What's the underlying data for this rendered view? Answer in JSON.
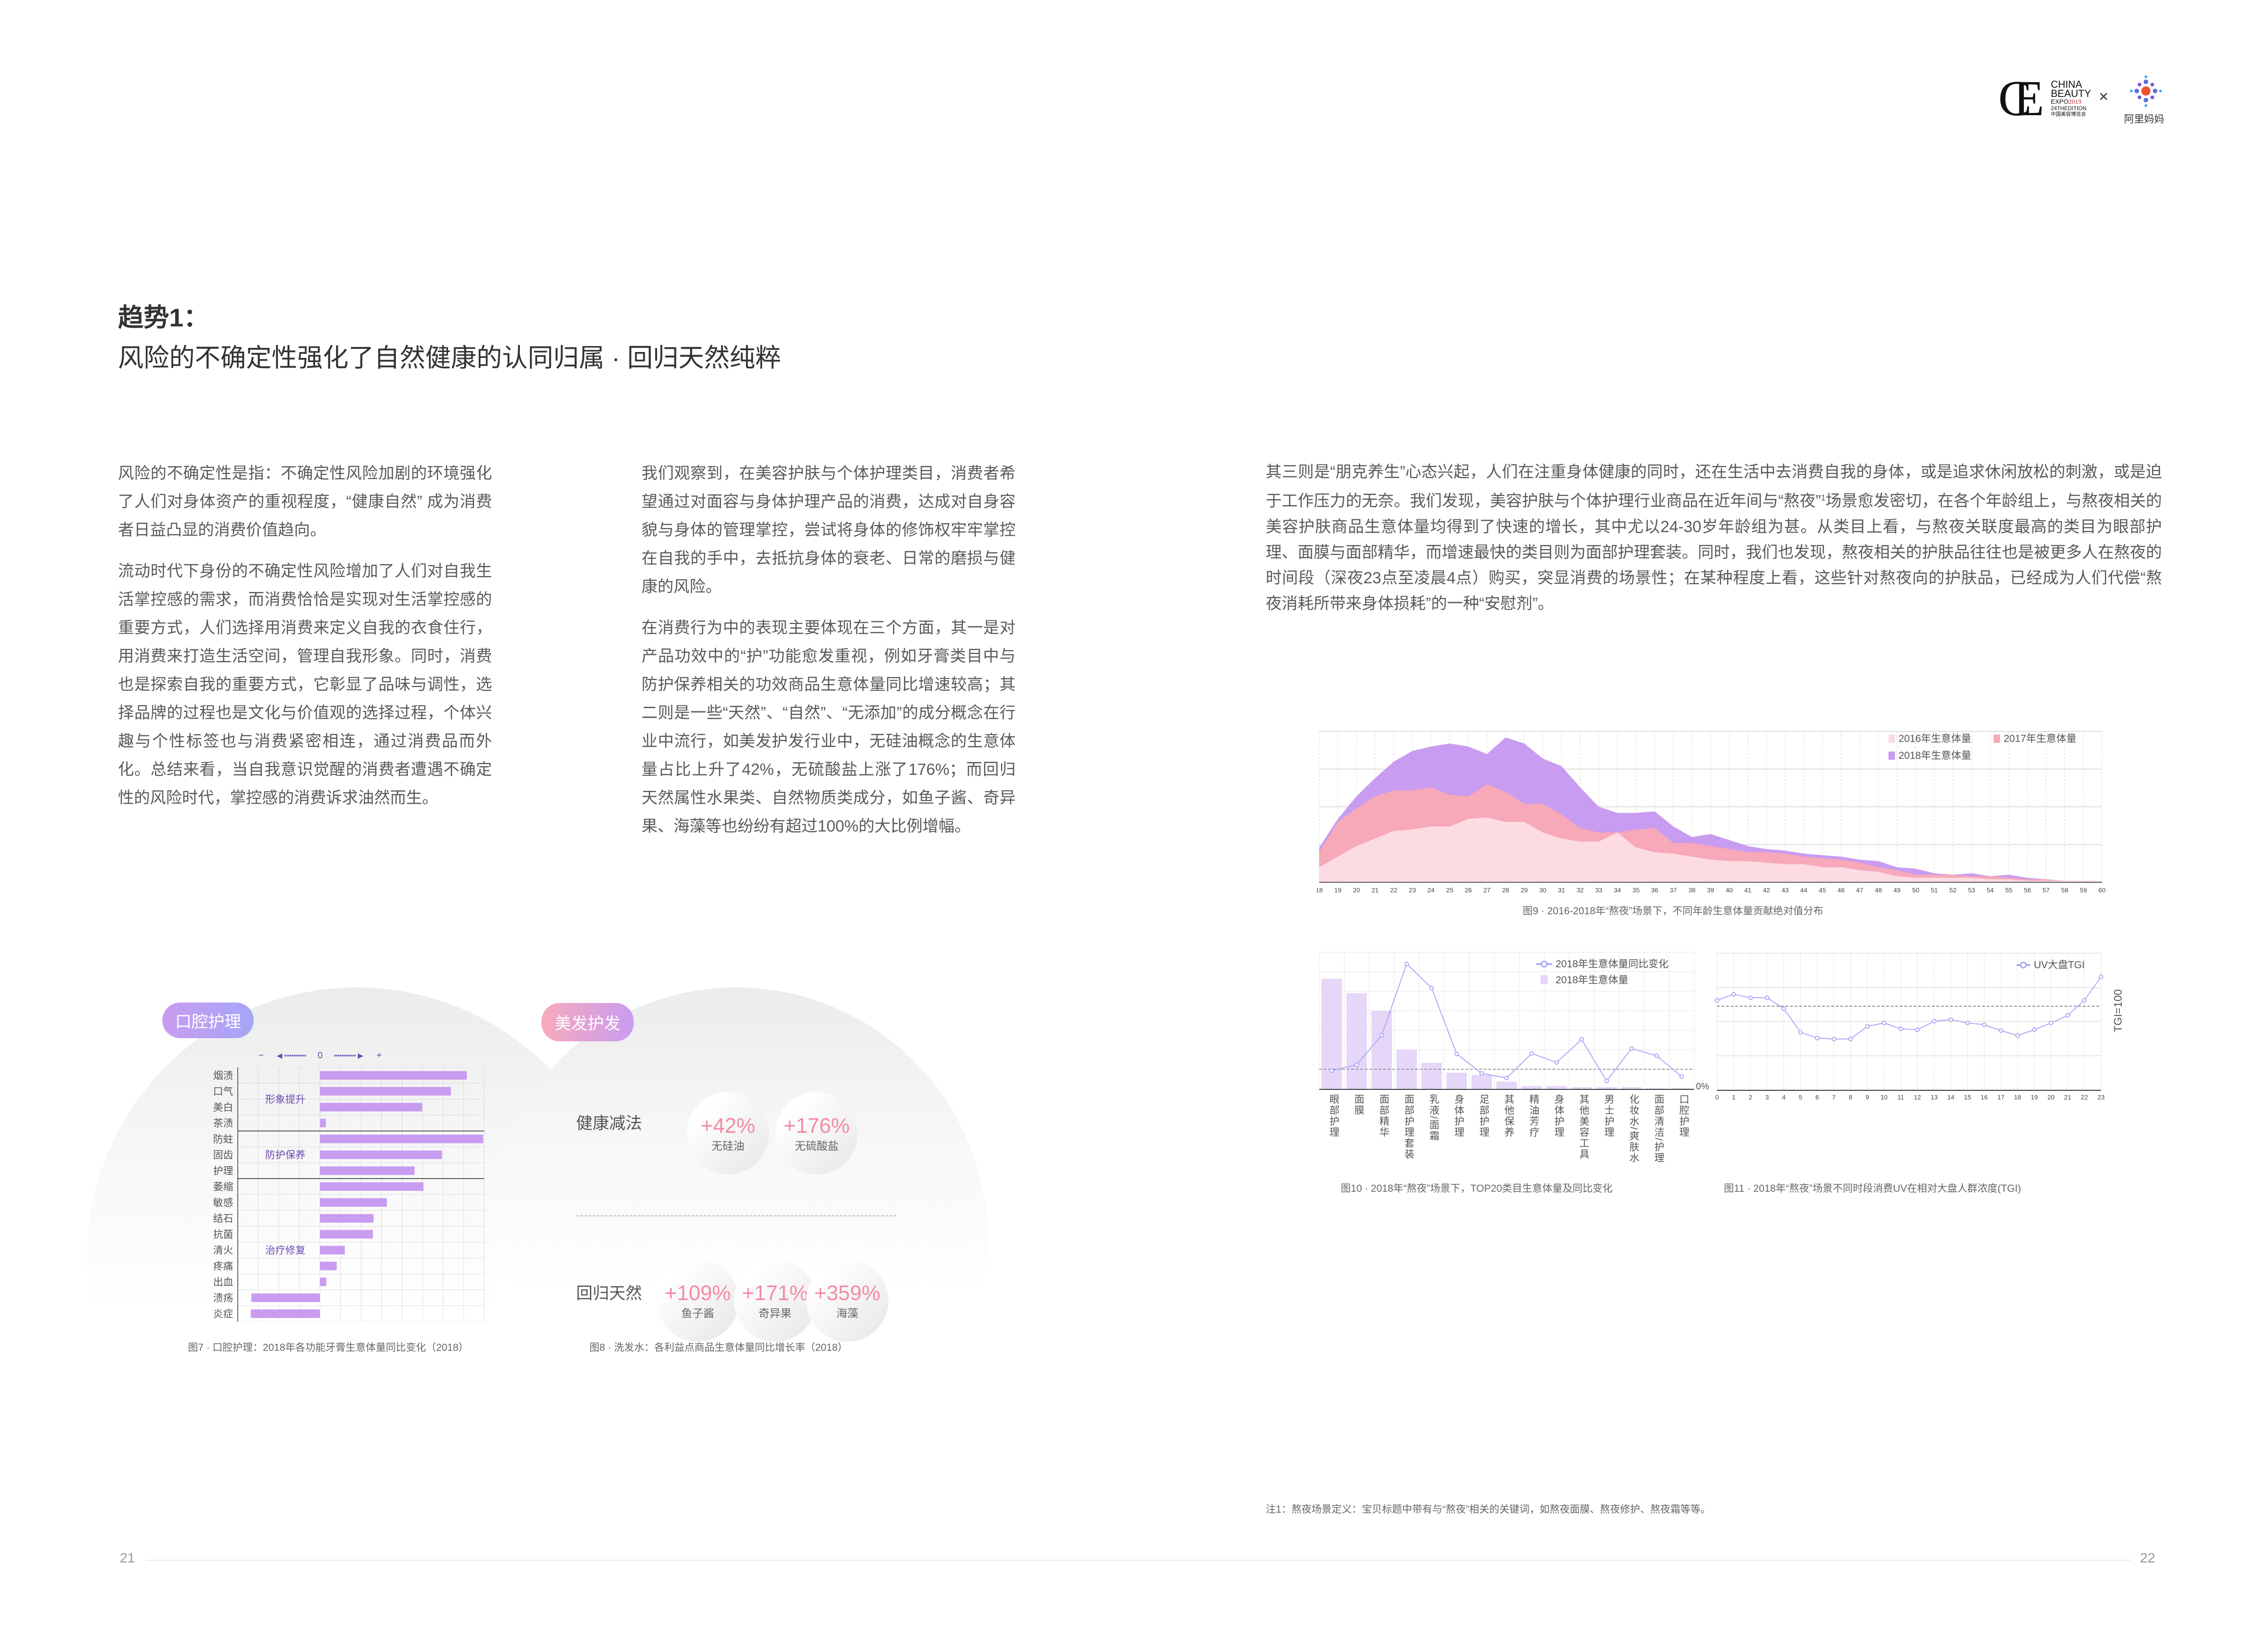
{
  "header": {
    "logo_cbe": {
      "line1": "CHINA",
      "line2": "BEAUTY",
      "line3a": "EXPO",
      "line3b": "2019",
      "line4": "24THEDITION",
      "line5": "中国美容博览会"
    },
    "times": "×",
    "logo_alimama": "阿里妈妈"
  },
  "title": {
    "trend": "趋势1：",
    "subtitle": "风险的不确定性强化了自然健康的认同归属 · 回归天然纯粹"
  },
  "col1": {
    "p1": "风险的不确定性是指：不确定性风险加剧的环境强化了人们对身体资产的重视程度，“健康自然” 成为消费者日益凸显的消费价值趋向。",
    "p2": "流动时代下身份的不确定性风险增加了人们对自我生活掌控感的需求，而消费恰恰是实现对生活掌控感的重要方式，人们选择用消费来定义自我的衣食住行，用消费来打造生活空间，管理自我形象。同时，消费也是探索自我的重要方式，它彰显了品味与调性，选择品牌的过程也是文化与价值观的选择过程，个体兴趣与个性标签也与消费紧密相连，通过消费品而外化。总结来看，当自我意识觉醒的消费者遭遇不确定性的风险时代，掌控感的消费诉求油然而生。"
  },
  "col2": {
    "p1": "我们观察到，在美容护肤与个体护理类目，消费者希望通过对面容与身体护理产品的消费，达成对自身容貌与身体的管理掌控，尝试将身体的修饰权牢牢掌控在自我的手中，去抵抗身体的衰老、日常的磨损与健康的风险。",
    "p2": "在消费行为中的表现主要体现在三个方面，其一是对产品功效中的“护”功能愈发重视，例如牙膏类目中与防护保养相关的功效商品生意体量同比增速较高；其二则是一些“天然”、“自然”、“无添加”的成分概念在行业中流行，如美发护发行业中，无硅油概念的生意体量占比上升了42%，无硫酸盐上涨了176%；而回归天然属性水果类、自然物质类成分，如鱼子酱、奇异果、海藻等也纷纷有超过100%的大比例增幅。"
  },
  "col3": {
    "p1a": "其三则是“朋克养生”心态兴起，人们在注重身体健康的同时，还在生活中去消费自我的身体，或是追求休闲放松的刺激，或是迫于工作压力的无奈。我们发现，美容护肤与个体护理行业商品在近年间与“熬夜”",
    "sup": "1",
    "p1b": "场景愈发密切，在各个年龄组上，与熬夜相关的美容护肤商品生意体量均得到了快速的增长，其中尤以24-30岁年龄组为甚。从类目上看，与熬夜关联度最高的类目为眼部护理、面膜与面部精华，而增速最快的类目则为面部护理套装。同时，我们也发现，熬夜相关的护肤品往往也是被更多人在熬夜的时间段（深夜23点至凌晨4点）购买，突显消费的场景性；在某种程度上看，这些针对熬夜向的护肤品，已经成为人们代偿“熬夜消耗所带来身体损耗”的一种“安慰剂”。"
  },
  "fig7": {
    "pill": "口腔护理",
    "axis": {
      "minus": "−",
      "zero": "0",
      "plus": "+"
    },
    "groups": [
      "形象提升",
      "防护保养",
      "治疗修复"
    ],
    "caption": "图7 · 口腔护理：2018年各功能牙膏生意体量同比变化（2018）"
  },
  "fig8": {
    "pill": "美发护发",
    "rows": [
      {
        "label": "健康减法",
        "items": [
          {
            "pct": "+42%",
            "name": "无硅油"
          },
          {
            "pct": "+176%",
            "name": "无硫酸盐"
          }
        ]
      },
      {
        "label": "回归天然",
        "items": [
          {
            "pct": "+109%",
            "name": "鱼子酱"
          },
          {
            "pct": "+171%",
            "name": "奇异果"
          },
          {
            "pct": "+359%",
            "name": "海藻"
          }
        ]
      }
    ],
    "caption": "图8 · 洗发水：各利益点商品生意体量同比增长率（2018）"
  },
  "fig9": {
    "caption": "图9 · 2016-2018年“熬夜”场景下，不同年龄生意体量贡献绝对值分布"
  },
  "fig10": {
    "caption": "图10 · 2018年“熬夜”场景下，TOP20类目生意体量及同比变化",
    "zero_label": "0%"
  },
  "fig11": {
    "caption": "图11 · 2018年“熬夜”场景不同时段消费UV在相对大盘人群浓度(TGI)",
    "ref_label": "TGI=100"
  },
  "footnote": "注1：熬夜场景定义：宝贝标题中带有与“熬夜”相关的关键词，如熬夜面膜、熬夜修护、熬夜霜等等。",
  "pages": {
    "left": "21",
    "right": "22"
  },
  "colors": {
    "purple": "#c89cf0",
    "pink": "#f7a8b9",
    "light_pink": "#fddbe3",
    "line": "#a9a6f5",
    "pct": "#f48ba3"
  },
  "chart_data": [
    {
      "id": "fig7",
      "type": "bar",
      "orientation": "horizontal",
      "categories": [
        "烟渍",
        "口气",
        "美白",
        "茶渍",
        "防蛀",
        "固齿",
        "护理",
        "萎缩",
        "敏感",
        "结石",
        "抗菌",
        "清火",
        "疼痛",
        "出血",
        "溃疡",
        "炎症"
      ],
      "groups": [
        {
          "name": "形象提升",
          "categories": [
            "烟渍",
            "口气",
            "美白",
            "茶渍"
          ]
        },
        {
          "name": "防护保养",
          "categories": [
            "防蛀",
            "固齿",
            "护理"
          ]
        },
        {
          "name": "治疗修复",
          "categories": [
            "萎缩",
            "敏感",
            "结石",
            "抗菌",
            "清火",
            "疼痛",
            "出血",
            "溃疡",
            "炎症"
          ]
        }
      ],
      "values": [
        7.15,
        6.38,
        4.98,
        0.29,
        7.95,
        5.94,
        4.61,
        5.04,
        3.26,
        2.61,
        2.58,
        1.21,
        0.82,
        0.31,
        -3.34,
        -3.37
      ],
      "xlim": [
        -4,
        8
      ],
      "grid": true,
      "color": "#c89cf0"
    },
    {
      "id": "fig9",
      "type": "area",
      "x": [
        18,
        19,
        20,
        21,
        22,
        23,
        24,
        25,
        26,
        27,
        28,
        29,
        30,
        31,
        32,
        33,
        34,
        35,
        36,
        37,
        38,
        39,
        40,
        41,
        42,
        43,
        44,
        45,
        46,
        47,
        48,
        49,
        50,
        51,
        52,
        53,
        54,
        55,
        56,
        57,
        58,
        59,
        60
      ],
      "series": [
        {
          "name": "2016年生意体量",
          "color": "#fddbe3",
          "values": [
            10,
            17,
            24,
            29,
            34,
            35,
            37,
            37,
            42,
            43,
            40,
            40,
            33,
            29,
            27,
            27,
            33,
            23,
            20,
            19,
            17,
            15,
            14,
            14,
            13,
            12,
            12,
            10,
            10,
            8,
            7,
            4,
            3,
            3,
            3,
            3,
            2,
            2,
            1,
            1,
            1,
            1,
            1
          ]
        },
        {
          "name": "2017年生意体量",
          "color": "#f7a8b9",
          "values": [
            20,
            40,
            49,
            57,
            61,
            61,
            63,
            58,
            57,
            65,
            60,
            52,
            52,
            45,
            36,
            33,
            33,
            35,
            36,
            26,
            26,
            24,
            22,
            20,
            20,
            19,
            17,
            16,
            15,
            13,
            10,
            8,
            5,
            5,
            5,
            4,
            4,
            3,
            2,
            2,
            1,
            1,
            1
          ]
        },
        {
          "name": "2018年生意体量",
          "color": "#c89cf0",
          "values": [
            23,
            42,
            57,
            69,
            80,
            87,
            90,
            92,
            90,
            85,
            96,
            92,
            82,
            77,
            63,
            50,
            46,
            46,
            47,
            37,
            30,
            32,
            28,
            24,
            22,
            21,
            19,
            18,
            17,
            15,
            14,
            10,
            9,
            6,
            5,
            6,
            4,
            5,
            3,
            2,
            1,
            1,
            1
          ]
        }
      ],
      "ylim": [
        0,
        100
      ],
      "grid": true,
      "legend": "top-right"
    },
    {
      "id": "fig10",
      "type": "bar+line",
      "categories": [
        "眼部护理",
        "面膜",
        "面部精华",
        "面部护理套装",
        "乳液/面霜",
        "身体护理",
        "足部护理",
        "其他保养",
        "精油芳疗",
        "身体护理",
        "其他美容工具",
        "男士护理",
        "化妆水/爽肤水",
        "面部清洁/护理",
        "口腔护理"
      ],
      "series": [
        {
          "name": "2018年生意体量",
          "type": "bar",
          "color": "#e6d6f8",
          "values": [
            100,
            87,
            71,
            36,
            24,
            15,
            13,
            7,
            3,
            3,
            2,
            2,
            2,
            1,
            1
          ],
          "ylim": [
            0,
            124
          ]
        },
        {
          "name": "2018年生意体量同比变化",
          "type": "line",
          "color": "#a9a6f5",
          "values": [
            -0.07,
            0.23,
            1.74,
            5.4,
            4.16,
            0.79,
            -0.21,
            -0.45,
            0.81,
            0.35,
            1.53,
            -0.6,
            1.07,
            0.69,
            -0.37
          ],
          "ylim": [
            -1.03,
            6
          ]
        }
      ],
      "grid": true,
      "legend": "top-right"
    },
    {
      "id": "fig11",
      "type": "line",
      "x": [
        0,
        1,
        2,
        3,
        4,
        5,
        6,
        7,
        8,
        9,
        10,
        11,
        12,
        13,
        14,
        15,
        16,
        17,
        18,
        19,
        20,
        21,
        22,
        23
      ],
      "series": [
        {
          "name": "UV大盘TGI",
          "color": "#a9a6f5",
          "values": [
            107,
            114,
            110,
            110,
            97,
            69,
            62,
            61,
            61,
            76,
            80,
            73,
            72,
            82,
            84,
            80,
            78,
            71,
            65,
            72,
            80,
            89,
            107,
            135
          ]
        }
      ],
      "reference_line": 100,
      "ylim": [
        0,
        163
      ],
      "grid": true,
      "legend": "top-right"
    }
  ]
}
